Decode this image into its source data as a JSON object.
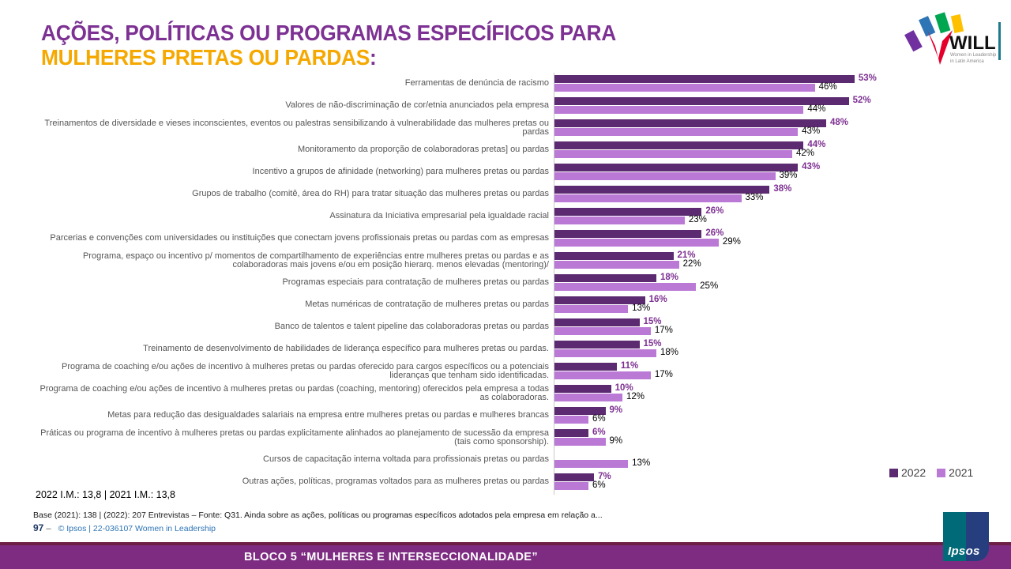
{
  "slide": {
    "title_line1": "AÇÕES, POLÍTICAS OU PROGRAMAS ESPECÍFICOS PARA",
    "title_line2": "MULHERES PRETAS OU PARDAS",
    "title_colon": ":",
    "im_note": "2022 I.M.: 13,8  | 2021 I.M.: 13,8",
    "base_note": "Base (2021): 138 | (2022): 207 Entrevistas – Fonte: Q31. Ainda sobre as ações, políticas ou programas específicos adotados pela empresa em relação a...",
    "page_number": "97",
    "page_dash": "–",
    "credit": "© Ipsos | 22-036107 Women in Leadership",
    "footer_banner": "BLOCO 5 “MULHERES  E INTERSECCIONALIDADE”"
  },
  "logos": {
    "will": {
      "name": "WILL",
      "sub1": "Women in Leadership",
      "sub2": "in Latin America"
    },
    "ipsos": {
      "name": "Ipsos"
    }
  },
  "colors": {
    "title_purple": "#7d3193",
    "title_orange": "#f5a800",
    "bar_2022": "#5b2a70",
    "bar_2021": "#bb79d6",
    "value_label_2022": "#7d3092",
    "value_label_2021": "#000000",
    "footer_band": "#7e2c82"
  },
  "chart_data": {
    "type": "bar",
    "orientation": "horizontal",
    "unit": "%",
    "xlim": [
      0,
      60
    ],
    "grid": false,
    "legend_position": "bottom-right",
    "categories": [
      "Ferramentas de denúncia de racismo",
      "Valores de não-discriminação de cor/etnia anunciados pela empresa",
      "Treinamentos de diversidade e vieses inconscientes, eventos ou palestras sensibilizando à vulnerabilidade das mulheres pretas ou pardas",
      "Monitoramento da proporção de colaboradoras pretas] ou pardas",
      "Incentivo a grupos de afinidade (networking) para mulheres pretas ou pardas",
      "Grupos de trabalho (comitê, área do RH) para tratar situação das mulheres pretas ou pardas",
      "Assinatura da Iniciativa empresarial pela igualdade racial",
      "Parcerias e convenções com universidades ou instituições que conectam jovens profissionais pretas ou pardas com as empresas",
      "Programa, espaço ou incentivo p/ momentos de compartilhamento de experiências entre mulheres pretas ou pardas e as colaboradoras mais jovens e/ou em posição hierarq. menos elevadas (mentoring)/",
      "Programas especiais para contratação de mulheres pretas ou pardas",
      "Metas numéricas de contratação de mulheres pretas ou pardas",
      "Banco de talentos e talent pipeline das colaboradoras pretas ou pardas",
      "Treinamento de desenvolvimento de habilidades de liderança específico para mulheres pretas ou pardas.",
      "Programa de coaching e/ou ações de incentivo à mulheres pretas ou pardas oferecido para cargos específicos ou a potenciais lideranças que tenham sido identificadas.",
      "Programa de coaching e/ou ações de incentivo à mulheres pretas ou pardas (coaching, mentoring) oferecidos pela empresa a todas as colaboradoras.",
      "Metas para redução das desigualdades salariais na empresa entre mulheres pretas ou pardas e mulheres brancas",
      "Práticas ou programa de incentivo à mulheres pretas ou pardas explicitamente alinhados ao planejamento de sucessão da empresa (tais como sponsorship).",
      "Cursos de capacitação interna voltada para profissionais pretas ou pardas",
      "Outras ações, políticas, programas voltados para as mulheres pretas ou pardas"
    ],
    "series": [
      {
        "name": "2022",
        "values": [
          53,
          52,
          48,
          44,
          43,
          38,
          26,
          26,
          21,
          18,
          16,
          15,
          15,
          11,
          10,
          9,
          6,
          null,
          7
        ]
      },
      {
        "name": "2021",
        "values": [
          46,
          44,
          43,
          42,
          39,
          33,
          23,
          29,
          22,
          25,
          13,
          17,
          18,
          17,
          12,
          6,
          9,
          13,
          6
        ]
      }
    ]
  }
}
